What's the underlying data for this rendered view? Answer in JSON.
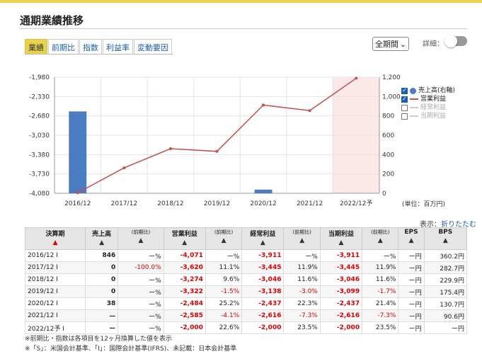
{
  "header": {
    "title": "通期業績推移"
  },
  "tabs": [
    {
      "label": "業績",
      "active": true
    },
    {
      "label": "前期比",
      "active": false
    },
    {
      "label": "指数",
      "active": false
    },
    {
      "label": "利益率",
      "active": false
    },
    {
      "label": "変動要因",
      "active": false
    }
  ],
  "controls": {
    "period": "全期間",
    "detail_label": "詳細："
  },
  "chart_data": {
    "type": "bar+line",
    "categories": [
      "2016/12",
      "2017/12",
      "2018/12",
      "2019/12",
      "2020/12",
      "2021/12",
      "2022/12予"
    ],
    "left_axis": {
      "ticks": [
        "-1,980",
        "-2,330",
        "-2,680",
        "-3,030",
        "-3,380",
        "-3,730",
        "-4,080"
      ],
      "ylim": [
        -4080,
        -1980
      ]
    },
    "right_axis": {
      "ticks": [
        "1,200",
        "1,000",
        "800",
        "600",
        "400",
        "200",
        "0"
      ],
      "ylim": [
        0,
        1200
      ]
    },
    "series": [
      {
        "name": "売上高(右軸)",
        "type": "bar",
        "axis": "right",
        "values": [
          846,
          0,
          0,
          0,
          38,
          null,
          null
        ],
        "color": "#4a7cc2"
      },
      {
        "name": "営業利益",
        "type": "line",
        "axis": "left",
        "values": [
          -4071,
          -3620,
          -3274,
          -3322,
          -2484,
          -2585,
          -2000
        ],
        "color": "#c0504d"
      }
    ],
    "forecast_shade_color": "#fde8e8"
  },
  "legend": [
    {
      "label": "売上高(右軸)",
      "checked": true
    },
    {
      "label": "営業利益",
      "checked": true
    },
    {
      "label": "経常利益",
      "checked": false
    },
    {
      "label": "当期利益",
      "checked": false
    }
  ],
  "unit_note": "(単位：百万円)",
  "display_toggle": {
    "prefix": "表示：",
    "link": "折りたたむ"
  },
  "table": {
    "headers": [
      {
        "label": "決算期",
        "sort": "▲"
      },
      {
        "label": "売上高",
        "sort": "▲"
      },
      {
        "label": "(前期比)",
        "sort": "▲"
      },
      {
        "label": "営業利益",
        "sort": "▲"
      },
      {
        "label": "(前期比)",
        "sort": "▲"
      },
      {
        "label": "経常利益",
        "sort": "▲"
      },
      {
        "label": "(前期比)",
        "sort": "▲"
      },
      {
        "label": "当期利益",
        "sort": "▲"
      },
      {
        "label": "(前期比)",
        "sort": "▲"
      },
      {
        "label": "EPS",
        "sort": "▲"
      },
      {
        "label": "BPS",
        "sort": "▲"
      }
    ],
    "rows": [
      [
        "2016/12 I",
        "846",
        "ー%",
        "-4,071",
        "ー%",
        "-3,911",
        "ー%",
        "-3,911",
        "ー%",
        "ー円",
        "360.2円"
      ],
      [
        "2017/12 I",
        "0",
        "-100.0%",
        "-3,620",
        "11.1%",
        "-3,445",
        "11.9%",
        "-3,445",
        "11.9%",
        "ー円",
        "282.7円"
      ],
      [
        "2018/12 I",
        "0",
        "ー%",
        "-3,274",
        "9.6%",
        "-3,046",
        "11.6%",
        "-3,046",
        "11.6%",
        "ー円",
        "229.9円"
      ],
      [
        "2019/12 I",
        "0",
        "ー%",
        "-3,322",
        "-1.5%",
        "-3,138",
        "-3.0%",
        "-3,099",
        "-1.7%",
        "ー円",
        "175.4円"
      ],
      [
        "2020/12 I",
        "38",
        "ー%",
        "-2,484",
        "25.2%",
        "-2,437",
        "22.3%",
        "-2,437",
        "21.4%",
        "ー円",
        "130.7円"
      ],
      [
        "2021/12 I",
        "ー",
        "ー%",
        "-2,585",
        "-4.1%",
        "-2,616",
        "-7.3%",
        "-2,616",
        "-7.3%",
        "ー円",
        "90.6円"
      ],
      [
        "2022/12予 I",
        "ー",
        "ー%",
        "-2,000",
        "22.6%",
        "-2,000",
        "23.5%",
        "-2,000",
        "23.5%",
        "ー円",
        "ー円"
      ]
    ]
  },
  "footnotes": [
    "※前期比・指数は各項目を12ヶ月換算した値を表示",
    "※「S」：米国会計基準、「I」：国際会計基準(IFRS)、未記載：日本会計基準"
  ]
}
